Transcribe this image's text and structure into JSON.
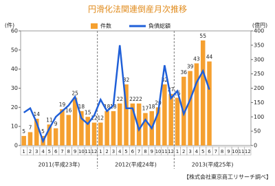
{
  "chart_data": {
    "type": "bar_line",
    "title": "円滑化法関連倒産月次推移",
    "y_label": "(件)",
    "y2_label": "(億円)",
    "categories": [
      "1",
      "2",
      "3",
      "4",
      "5",
      "6",
      "7",
      "8",
      "9",
      "10",
      "11",
      "12",
      "1",
      "2",
      "3",
      "4",
      "5",
      "6",
      "7",
      "8",
      "9",
      "10",
      "11",
      "12",
      "1",
      "2",
      "3",
      "4",
      "5",
      "6",
      "7",
      "8",
      "9",
      "10",
      "11",
      "12"
    ],
    "year_labels": [
      "2011(平成23年)",
      "2012(平成24年)",
      "2013(平成25年)"
    ],
    "series": [
      {
        "name": "件数",
        "color": "#f5a030",
        "type": "bar",
        "values": [
          5,
          7,
          14,
          5,
          11,
          9,
          19,
          16,
          25,
          18,
          15,
          12,
          12,
          18,
          18,
          22,
          32,
          22,
          22,
          17,
          18,
          20,
          32,
          27,
          25,
          36,
          39,
          43,
          55,
          44,
          null,
          null,
          null,
          null,
          null,
          null
        ]
      },
      {
        "name": "負債総額",
        "color": "#1f5fd8",
        "type": "line",
        "axis": "y2",
        "values": [
          115,
          130,
          80,
          15,
          60,
          100,
          120,
          140,
          170,
          95,
          75,
          105,
          160,
          120,
          140,
          350,
          130,
          130,
          55,
          90,
          60,
          115,
          280,
          165,
          190,
          110,
          160,
          220,
          260,
          195,
          null,
          null,
          null,
          null,
          null,
          null
        ]
      }
    ],
    "ylim": [
      0,
      60
    ],
    "yticks": [
      0,
      10,
      20,
      30,
      40,
      50,
      60
    ],
    "y2lim": [
      0,
      400
    ],
    "y2ticks": [
      0,
      50,
      100,
      150,
      200,
      250,
      300,
      350,
      400
    ],
    "source": "【株式会社東京商工リサーチ調べ】"
  }
}
